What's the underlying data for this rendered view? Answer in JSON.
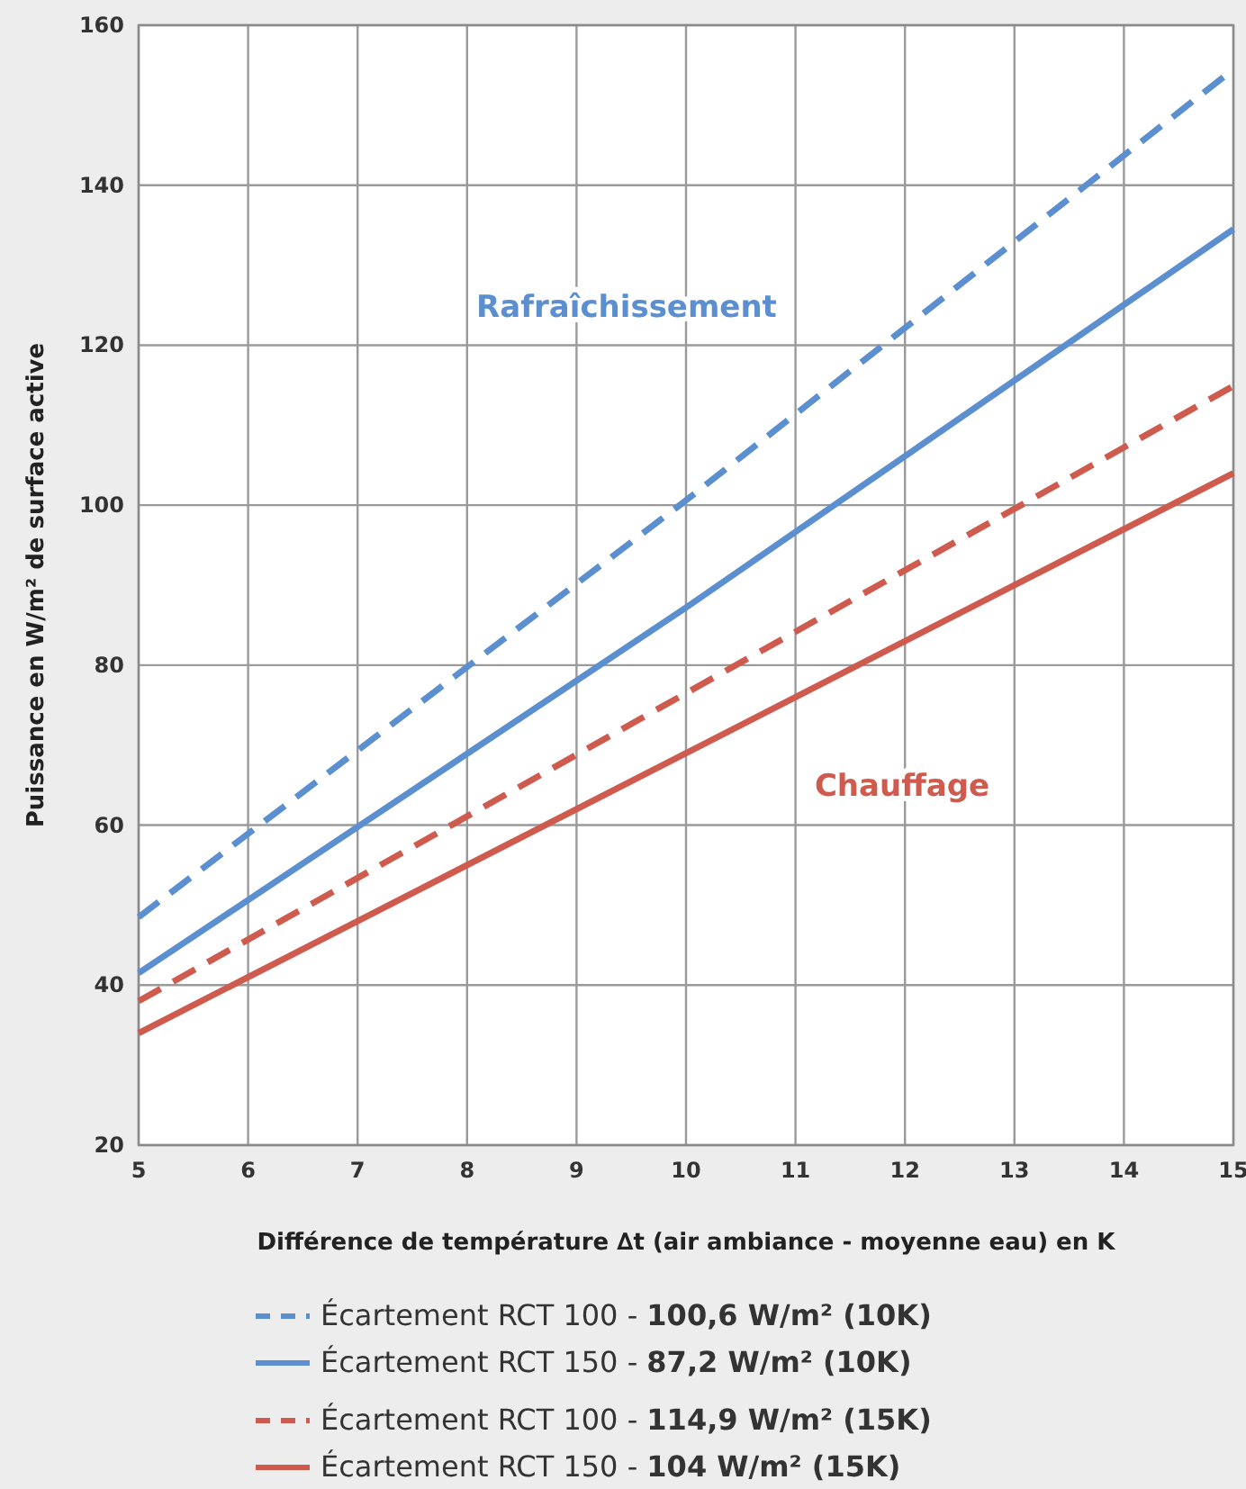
{
  "chart_data": {
    "type": "line",
    "xlabel": "Différence de température ∆t (air ambiance - moyenne eau) en K",
    "ylabel": "Puissance en W/m² de surface active",
    "x": [
      5,
      10,
      15
    ],
    "xlim": [
      5,
      15
    ],
    "xticks": [
      5,
      6,
      7,
      8,
      9,
      10,
      11,
      12,
      13,
      14,
      15
    ],
    "ylim": [
      20,
      160
    ],
    "yticks": [
      20,
      40,
      60,
      80,
      100,
      120,
      140,
      160
    ],
    "grid": true,
    "legend": "bottom",
    "series": [
      {
        "name": "Écartement RCT 100 - 100,6 W/m² (10K)",
        "color": "#5b8fcf",
        "line_style": "dashed",
        "values": [
          48.5,
          100.6,
          154.5
        ]
      },
      {
        "name": "Écartement RCT 150 - 87,2 W/m² (10K)",
        "color": "#5b8fcf",
        "line_style": "solid",
        "values": [
          41.5,
          87.2,
          134.5
        ]
      },
      {
        "name": "Écartement RCT 100 - 114,9 W/m² (15K)",
        "color": "#cf5b4f",
        "line_style": "dashed",
        "values": [
          38,
          76.5,
          114.9
        ]
      },
      {
        "name": "Écartement RCT 150 - 104 W/m² (15K)",
        "color": "#cf5b4f",
        "line_style": "solid",
        "values": [
          34,
          69,
          104
        ]
      }
    ],
    "annotations": [
      "Rafraîchissement",
      "Chauffage"
    ]
  }
}
